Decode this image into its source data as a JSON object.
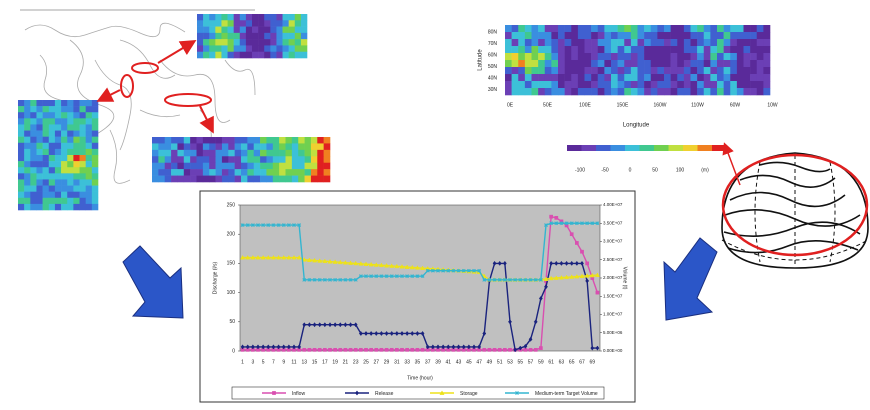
{
  "chart_data": {
    "type": "line",
    "xlabel": "Time (hour)",
    "ylabel": "Discharge (l/s)",
    "y2label": "Volume (t)",
    "categories": [
      1,
      null,
      3,
      null,
      5,
      null,
      7,
      null,
      9,
      null,
      11,
      null,
      13,
      null,
      15,
      null,
      17,
      null,
      19,
      null,
      21,
      null,
      23,
      null,
      25,
      null,
      27,
      null,
      29,
      null,
      31,
      null,
      33,
      null,
      35,
      null,
      37,
      null,
      39,
      null,
      41,
      null,
      43,
      null,
      45,
      null,
      47,
      null,
      49,
      null,
      51,
      null,
      53,
      null,
      55,
      null,
      57,
      null,
      59,
      null,
      61,
      null,
      63,
      null,
      65,
      null,
      67,
      null,
      69,
      null
    ],
    "ylim": [
      0,
      250
    ],
    "yticks": [
      0,
      50,
      100,
      150,
      200,
      250
    ],
    "y2lim": [
      0,
      40000000
    ],
    "y2ticks": [
      {
        "value": 0,
        "label": "0.00E+00"
      },
      {
        "value": 5000000,
        "label": "5.00E+06"
      },
      {
        "value": 10000000,
        "label": "1.00E+07"
      },
      {
        "value": 15000000,
        "label": "1.50E+07"
      },
      {
        "value": 20000000,
        "label": "2.00E+07"
      },
      {
        "value": 25000000,
        "label": "2.50E+07"
      },
      {
        "value": 30000000,
        "label": "3.00E+07"
      },
      {
        "value": 35000000,
        "label": "3.50E+07"
      },
      {
        "value": 40000000,
        "label": "4.00E+07"
      }
    ],
    "background": "#c0c0c0",
    "series": [
      {
        "name": "Inflow",
        "color": "#d94fb0",
        "marker": "square",
        "values": [
          2,
          2,
          2,
          2,
          2,
          2,
          2,
          2,
          2,
          2,
          2,
          2,
          2,
          2,
          2,
          2,
          2,
          2,
          2,
          2,
          2,
          2,
          2,
          2,
          2,
          2,
          2,
          2,
          2,
          2,
          2,
          2,
          2,
          2,
          2,
          2,
          2,
          2,
          2,
          2,
          2,
          2,
          2,
          2,
          2,
          2,
          2,
          2,
          2,
          2,
          2,
          2,
          2,
          2,
          2,
          2,
          2,
          2,
          5,
          120,
          230,
          228,
          222,
          215,
          200,
          185,
          170,
          150,
          125,
          100
        ]
      },
      {
        "name": "Release",
        "color": "#1a237e",
        "marker": "diamond",
        "values": [
          7,
          7,
          7,
          7,
          7,
          7,
          7,
          7,
          7,
          7,
          7,
          7,
          45,
          45,
          45,
          45,
          45,
          45,
          45,
          45,
          45,
          45,
          45,
          30,
          30,
          30,
          30,
          30,
          30,
          30,
          30,
          30,
          30,
          30,
          30,
          30,
          7,
          7,
          7,
          7,
          7,
          7,
          7,
          7,
          7,
          7,
          7,
          30,
          120,
          150,
          150,
          150,
          50,
          2,
          5,
          8,
          20,
          50,
          90,
          110,
          150,
          150,
          150,
          150,
          150,
          150,
          150,
          120,
          5,
          5
        ]
      },
      {
        "name": "Storage",
        "color": "#ede21a",
        "marker": "triangle",
        "axis": "y2",
        "values": [
          25600000,
          25600000,
          25600000,
          25600000,
          25600000,
          25600000,
          25600000,
          25600000,
          25600000,
          25600000,
          25600000,
          25600000,
          25000000,
          24900000,
          24800000,
          24700000,
          24600000,
          24500000,
          24400000,
          24300000,
          24200000,
          24100000,
          24000000,
          23900000,
          23800000,
          23700000,
          23600000,
          23500000,
          23400000,
          23300000,
          23200000,
          23100000,
          23000000,
          22900000,
          22800000,
          22700000,
          22600000,
          22500000,
          22400000,
          22300000,
          22200000,
          22100000,
          22000000,
          21900000,
          21800000,
          21700000,
          21600000,
          20500000,
          19500000,
          19500000,
          19500000,
          19500000,
          19500000,
          19500000,
          19500000,
          19500000,
          19500000,
          19500000,
          19600000,
          19700000,
          19900000,
          20000000,
          20100000,
          20200000,
          20300000,
          20400000,
          20500000,
          20600000,
          20700000,
          20800000
        ]
      },
      {
        "name": "Medium-term Target Volume",
        "color": "#33b5d0",
        "marker": "star",
        "axis": "y2",
        "values": [
          34500000,
          34500000,
          34500000,
          34500000,
          34500000,
          34500000,
          34500000,
          34500000,
          34500000,
          34500000,
          34500000,
          34500000,
          19500000,
          19500000,
          19500000,
          19500000,
          19500000,
          19500000,
          19500000,
          19500000,
          19500000,
          19500000,
          19500000,
          20500000,
          20500000,
          20500000,
          20500000,
          20500000,
          20500000,
          20500000,
          20500000,
          20500000,
          20500000,
          20500000,
          20500000,
          20500000,
          22000000,
          22000000,
          22000000,
          22000000,
          22000000,
          22000000,
          22000000,
          22000000,
          22000000,
          22000000,
          22000000,
          19500000,
          19500000,
          19500000,
          19500000,
          19500000,
          19500000,
          19500000,
          19500000,
          19500000,
          19500000,
          19500000,
          19500000,
          34500000,
          35000000,
          35000000,
          35000000,
          35000000,
          35000000,
          35000000,
          35000000,
          35000000,
          35000000,
          35000000
        ]
      }
    ]
  },
  "inset": {
    "ylabel": "Latitude",
    "xlabel": "Longitude",
    "yticks": [
      "80N",
      "70N",
      "60N",
      "50N",
      "40N",
      "30N"
    ],
    "xticks": [
      "0E",
      "50E",
      "100E",
      "150E",
      "160W",
      "110W",
      "60W",
      "10W"
    ],
    "colorbar": [
      "-100",
      "-50",
      "0",
      "50",
      "100",
      "(m)"
    ]
  }
}
